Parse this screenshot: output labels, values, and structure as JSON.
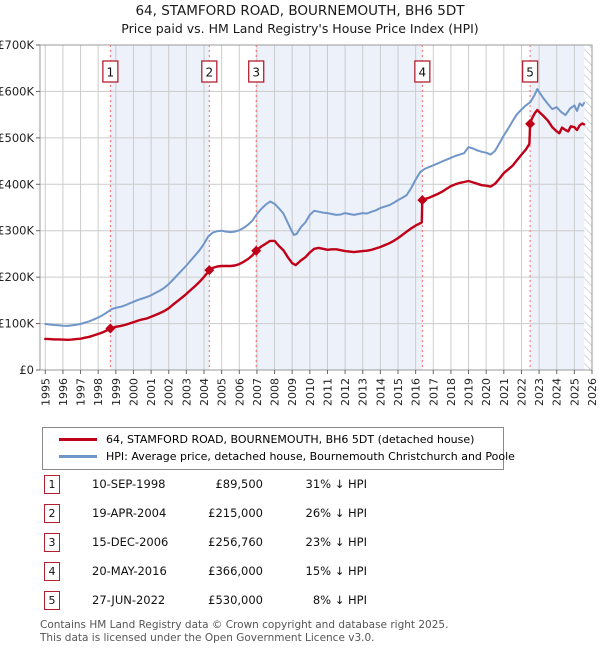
{
  "title": "64, STAMFORD ROAD, BOURNEMOUTH, BH6 5DT",
  "subtitle": "Price paid vs. HM Land Registry's House Price Index (HPI)",
  "colors": {
    "price_line": "#c00018",
    "hpi_line": "#7096c9",
    "band_fill": "#edf1fa",
    "grid": "#cccccc",
    "plot_border": "#999999",
    "sale_dash_line": "#ff6666",
    "marker_box_border": "#b32030",
    "hatch_line": "#b9bdc6"
  },
  "chart_data": {
    "type": "line",
    "y_units": "GBP (thousands)",
    "x_range": [
      1994.7,
      2026
    ],
    "ylim_k": [
      0,
      700
    ],
    "y_ticks_k": [
      0,
      100,
      200,
      300,
      400,
      500,
      600,
      700
    ],
    "y_tick_labels": [
      "£0",
      "£100K",
      "£200K",
      "£300K",
      "£400K",
      "£500K",
      "£600K",
      "£700K"
    ],
    "x_ticks": [
      1995,
      1996,
      1997,
      1998,
      1999,
      2000,
      2001,
      2002,
      2003,
      2004,
      2005,
      2006,
      2007,
      2008,
      2009,
      2010,
      2011,
      2012,
      2013,
      2014,
      2015,
      2016,
      2017,
      2018,
      2019,
      2020,
      2021,
      2022,
      2023,
      2024,
      2025,
      2026
    ],
    "grid": true,
    "legend_position": "below",
    "hatch_from": 2025.57,
    "ownership_bands": [
      [
        1998.69,
        2004.3
      ],
      [
        2006.96,
        2016.38
      ],
      [
        2022.49,
        2025.57
      ]
    ],
    "sales": [
      {
        "n": "1",
        "x": 1998.69,
        "price_k": 89.5
      },
      {
        "n": "2",
        "x": 2004.3,
        "price_k": 215
      },
      {
        "n": "3",
        "x": 2006.96,
        "price_k": 256.76
      },
      {
        "n": "4",
        "x": 2016.38,
        "price_k": 366
      },
      {
        "n": "5",
        "x": 2022.49,
        "price_k": 530
      }
    ],
    "series": [
      {
        "id": "hpi",
        "label": "HPI: Average price, detached house, Bournemouth Christchurch and Poole",
        "width": 2,
        "points": [
          [
            1995,
            99
          ],
          [
            1995.25,
            98
          ],
          [
            1995.5,
            97
          ],
          [
            1995.75,
            96.5
          ],
          [
            1996,
            95.5
          ],
          [
            1996.25,
            95
          ],
          [
            1996.5,
            96
          ],
          [
            1996.75,
            97.5
          ],
          [
            1997,
            99
          ],
          [
            1997.25,
            102
          ],
          [
            1997.5,
            105
          ],
          [
            1997.75,
            109
          ],
          [
            1998,
            113
          ],
          [
            1998.25,
            118
          ],
          [
            1998.5,
            124
          ],
          [
            1998.75,
            131
          ],
          [
            1999,
            134
          ],
          [
            1999.25,
            136
          ],
          [
            1999.5,
            139
          ],
          [
            1999.75,
            143
          ],
          [
            2000,
            147
          ],
          [
            2000.25,
            151
          ],
          [
            2000.5,
            154
          ],
          [
            2000.75,
            157
          ],
          [
            2001,
            161
          ],
          [
            2001.25,
            166
          ],
          [
            2001.5,
            171
          ],
          [
            2001.75,
            177
          ],
          [
            2002,
            185
          ],
          [
            2002.25,
            195
          ],
          [
            2002.5,
            205
          ],
          [
            2002.75,
            215
          ],
          [
            2003,
            225
          ],
          [
            2003.25,
            236
          ],
          [
            2003.5,
            247
          ],
          [
            2003.75,
            258
          ],
          [
            2004,
            272
          ],
          [
            2004.25,
            288
          ],
          [
            2004.5,
            296
          ],
          [
            2004.75,
            299
          ],
          [
            2005,
            300
          ],
          [
            2005.25,
            298
          ],
          [
            2005.5,
            297
          ],
          [
            2005.75,
            298
          ],
          [
            2006,
            301
          ],
          [
            2006.25,
            306
          ],
          [
            2006.5,
            313
          ],
          [
            2006.75,
            322
          ],
          [
            2007,
            336
          ],
          [
            2007.25,
            347
          ],
          [
            2007.5,
            356
          ],
          [
            2007.75,
            363
          ],
          [
            2008,
            358
          ],
          [
            2008.25,
            348
          ],
          [
            2008.5,
            337
          ],
          [
            2008.75,
            317
          ],
          [
            2009,
            297
          ],
          [
            2009.1,
            291
          ],
          [
            2009.25,
            293
          ],
          [
            2009.5,
            308
          ],
          [
            2009.75,
            318
          ],
          [
            2010,
            334
          ],
          [
            2010.25,
            343
          ],
          [
            2010.5,
            341
          ],
          [
            2010.75,
            339
          ],
          [
            2011,
            338
          ],
          [
            2011.25,
            336
          ],
          [
            2011.5,
            334
          ],
          [
            2011.75,
            335
          ],
          [
            2012,
            338
          ],
          [
            2012.25,
            336
          ],
          [
            2012.5,
            334
          ],
          [
            2012.75,
            336
          ],
          [
            2013,
            338
          ],
          [
            2013.25,
            337
          ],
          [
            2013.5,
            341
          ],
          [
            2013.75,
            344
          ],
          [
            2014,
            349
          ],
          [
            2014.25,
            352
          ],
          [
            2014.5,
            355
          ],
          [
            2014.75,
            360
          ],
          [
            2015,
            366
          ],
          [
            2015.25,
            371
          ],
          [
            2015.5,
            377
          ],
          [
            2015.75,
            392
          ],
          [
            2016,
            410
          ],
          [
            2016.25,
            426
          ],
          [
            2016.5,
            433
          ],
          [
            2016.75,
            437
          ],
          [
            2017,
            441
          ],
          [
            2017.25,
            445
          ],
          [
            2017.5,
            449
          ],
          [
            2017.75,
            453
          ],
          [
            2018,
            457
          ],
          [
            2018.25,
            461
          ],
          [
            2018.5,
            464
          ],
          [
            2018.75,
            467
          ],
          [
            2019,
            480
          ],
          [
            2019.25,
            477
          ],
          [
            2019.5,
            473
          ],
          [
            2019.75,
            470
          ],
          [
            2020,
            468
          ],
          [
            2020.25,
            464
          ],
          [
            2020.5,
            472
          ],
          [
            2020.75,
            488
          ],
          [
            2021,
            505
          ],
          [
            2021.25,
            520
          ],
          [
            2021.5,
            536
          ],
          [
            2021.75,
            551
          ],
          [
            2022,
            561
          ],
          [
            2022.25,
            570
          ],
          [
            2022.5,
            577
          ],
          [
            2022.75,
            593
          ],
          [
            2022.9,
            605
          ],
          [
            2023,
            599
          ],
          [
            2023.25,
            585
          ],
          [
            2023.5,
            573
          ],
          [
            2023.75,
            562
          ],
          [
            2024,
            566
          ],
          [
            2024.25,
            556
          ],
          [
            2024.5,
            549
          ],
          [
            2024.75,
            563
          ],
          [
            2025,
            570
          ],
          [
            2025.15,
            558
          ],
          [
            2025.3,
            574
          ],
          [
            2025.45,
            569
          ],
          [
            2025.55,
            575
          ]
        ]
      },
      {
        "id": "price",
        "label": "64, STAMFORD ROAD, BOURNEMOUTH, BH6 5DT (detached house)",
        "width": 2.4,
        "points": [
          [
            1995,
            67
          ],
          [
            1995.25,
            66.5
          ],
          [
            1995.5,
            66
          ],
          [
            1995.75,
            65.8
          ],
          [
            1996,
            65.5
          ],
          [
            1996.25,
            65
          ],
          [
            1996.5,
            65.5
          ],
          [
            1996.75,
            66.5
          ],
          [
            1997,
            67.5
          ],
          [
            1997.25,
            69.5
          ],
          [
            1997.5,
            71.5
          ],
          [
            1997.75,
            74.5
          ],
          [
            1998,
            77.5
          ],
          [
            1998.25,
            81
          ],
          [
            1998.5,
            85.5
          ],
          [
            1998.69,
            89.5
          ],
          [
            1998.75,
            90.5
          ],
          [
            1999,
            93
          ],
          [
            1999.25,
            94.5
          ],
          [
            1999.5,
            97
          ],
          [
            1999.75,
            100
          ],
          [
            2000,
            103
          ],
          [
            2000.25,
            106.5
          ],
          [
            2000.5,
            109
          ],
          [
            2000.75,
            111
          ],
          [
            2001,
            114.5
          ],
          [
            2001.25,
            118.5
          ],
          [
            2001.5,
            122.5
          ],
          [
            2001.75,
            127
          ],
          [
            2002,
            133
          ],
          [
            2002.25,
            141
          ],
          [
            2002.5,
            148.5
          ],
          [
            2002.75,
            156
          ],
          [
            2003,
            164
          ],
          [
            2003.25,
            172.5
          ],
          [
            2003.5,
            181
          ],
          [
            2003.75,
            190
          ],
          [
            2004,
            200.5
          ],
          [
            2004.25,
            212
          ],
          [
            2004.3,
            215
          ],
          [
            2004.5,
            220
          ],
          [
            2004.75,
            223
          ],
          [
            2005,
            224
          ],
          [
            2005.25,
            224
          ],
          [
            2005.5,
            224
          ],
          [
            2005.75,
            225
          ],
          [
            2006,
            228
          ],
          [
            2006.25,
            233
          ],
          [
            2006.5,
            239
          ],
          [
            2006.75,
            247
          ],
          [
            2006.96,
            256.8
          ],
          [
            2007,
            259
          ],
          [
            2007.25,
            266
          ],
          [
            2007.5,
            272
          ],
          [
            2007.75,
            278
          ],
          [
            2008,
            278
          ],
          [
            2008.25,
            267
          ],
          [
            2008.5,
            258
          ],
          [
            2008.75,
            243
          ],
          [
            2009,
            230
          ],
          [
            2009.2,
            226
          ],
          [
            2009.5,
            236
          ],
          [
            2009.75,
            243
          ],
          [
            2010,
            253
          ],
          [
            2010.25,
            261
          ],
          [
            2010.5,
            263
          ],
          [
            2010.75,
            261
          ],
          [
            2011,
            259
          ],
          [
            2011.25,
            260
          ],
          [
            2011.5,
            260
          ],
          [
            2011.75,
            258
          ],
          [
            2012,
            256
          ],
          [
            2012.25,
            255
          ],
          [
            2012.5,
            254
          ],
          [
            2012.75,
            255
          ],
          [
            2013,
            256
          ],
          [
            2013.25,
            257
          ],
          [
            2013.5,
            259
          ],
          [
            2013.75,
            262
          ],
          [
            2014,
            265
          ],
          [
            2014.25,
            269
          ],
          [
            2014.5,
            273
          ],
          [
            2014.75,
            278
          ],
          [
            2015,
            284
          ],
          [
            2015.25,
            291
          ],
          [
            2015.5,
            298
          ],
          [
            2015.75,
            305
          ],
          [
            2016,
            311
          ],
          [
            2016.25,
            316
          ],
          [
            2016.35,
            318
          ],
          [
            2016.38,
            366
          ],
          [
            2016.5,
            368
          ],
          [
            2016.75,
            371
          ],
          [
            2017,
            375
          ],
          [
            2017.25,
            379
          ],
          [
            2017.5,
            384
          ],
          [
            2017.75,
            390
          ],
          [
            2018,
            396
          ],
          [
            2018.25,
            400
          ],
          [
            2018.5,
            403
          ],
          [
            2018.75,
            405
          ],
          [
            2019,
            407
          ],
          [
            2019.25,
            404
          ],
          [
            2019.5,
            401
          ],
          [
            2019.75,
            398
          ],
          [
            2020,
            397
          ],
          [
            2020.25,
            395
          ],
          [
            2020.5,
            401
          ],
          [
            2020.75,
            412
          ],
          [
            2021,
            424
          ],
          [
            2021.25,
            432
          ],
          [
            2021.5,
            440
          ],
          [
            2021.75,
            452
          ],
          [
            2022,
            464
          ],
          [
            2022.25,
            475
          ],
          [
            2022.45,
            487
          ],
          [
            2022.49,
            530
          ],
          [
            2022.6,
            542
          ],
          [
            2022.75,
            553
          ],
          [
            2022.9,
            560
          ],
          [
            2023,
            556
          ],
          [
            2023.25,
            547
          ],
          [
            2023.5,
            537
          ],
          [
            2023.75,
            523
          ],
          [
            2024,
            514
          ],
          [
            2024.15,
            510
          ],
          [
            2024.3,
            522
          ],
          [
            2024.5,
            517
          ],
          [
            2024.65,
            514
          ],
          [
            2024.8,
            525
          ],
          [
            2025,
            523
          ],
          [
            2025.15,
            517
          ],
          [
            2025.3,
            527
          ],
          [
            2025.45,
            531
          ],
          [
            2025.55,
            529
          ]
        ]
      }
    ]
  },
  "legend": {
    "items": [
      {
        "label": "64, STAMFORD ROAD, BOURNEMOUTH, BH6 5DT (detached house)",
        "series": "price"
      },
      {
        "label": "HPI: Average price, detached house, Bournemouth Christchurch and Poole",
        "series": "hpi"
      }
    ]
  },
  "table": {
    "rows": [
      {
        "n": "1",
        "date": "10-SEP-1998",
        "price": "£89,500",
        "vs_hpi": "31% ↓ HPI"
      },
      {
        "n": "2",
        "date": "19-APR-2004",
        "price": "£215,000",
        "vs_hpi": "26% ↓ HPI"
      },
      {
        "n": "3",
        "date": "15-DEC-2006",
        "price": "£256,760",
        "vs_hpi": "23% ↓ HPI"
      },
      {
        "n": "4",
        "date": "20-MAY-2016",
        "price": "£366,000",
        "vs_hpi": "15% ↓ HPI"
      },
      {
        "n": "5",
        "date": "27-JUN-2022",
        "price": "£530,000",
        "vs_hpi": "8% ↓ HPI"
      }
    ]
  },
  "footer": {
    "line1": "Contains HM Land Registry data © Crown copyright and database right 2025.",
    "line2": "This data is licensed under the Open Government Licence v3.0."
  }
}
